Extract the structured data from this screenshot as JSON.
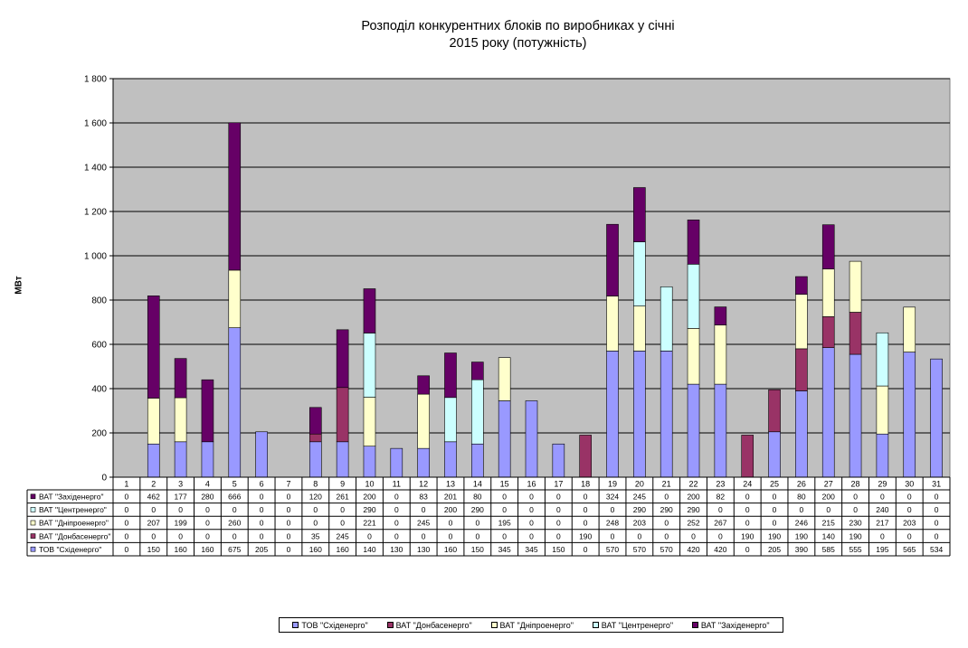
{
  "chart_data": {
    "type": "bar",
    "stacked": true,
    "title_lines": [
      "Розподіл конкурентних  блоків по виробниках у січні",
      "2015 року  (потужність)"
    ],
    "ylabel": "МВт",
    "ylim": [
      0,
      1800
    ],
    "yticks": [
      "0",
      "200",
      "400",
      "600",
      "800",
      "1 000",
      "1 200",
      "1 400",
      "1 600",
      "1 800"
    ],
    "grid": true,
    "plot_background": "#c0c0c0",
    "legend_position": "bottom",
    "categories": [
      "1",
      "2",
      "3",
      "4",
      "5",
      "6",
      "7",
      "8",
      "9",
      "10",
      "11",
      "12",
      "13",
      "14",
      "15",
      "16",
      "17",
      "18",
      "19",
      "20",
      "21",
      "22",
      "23",
      "24",
      "25",
      "26",
      "27",
      "28",
      "29",
      "30",
      "31"
    ],
    "series": [
      {
        "name": "ТОВ \"Східенерго\"",
        "table_label": "ТОВ \"Східенерго\"",
        "legend_label": "ТОВ \"Східенерго\"",
        "color": "#9999ff",
        "values": [
          0,
          150,
          160,
          160,
          675,
          205,
          0,
          160,
          160,
          140,
          130,
          130,
          160,
          150,
          345,
          345,
          150,
          0,
          570,
          570,
          570,
          420,
          420,
          0,
          205,
          390,
          585,
          555,
          195,
          565,
          534
        ]
      },
      {
        "name": "ВАТ \"Донбасенерго\"",
        "table_label": "ВАТ \"Донбасенерго\"",
        "legend_label": "ВАТ \"Донбасенерго\"",
        "color": "#993366",
        "values": [
          0,
          0,
          0,
          0,
          0,
          0,
          0,
          35,
          245,
          0,
          0,
          0,
          0,
          0,
          0,
          0,
          0,
          190,
          0,
          0,
          0,
          0,
          0,
          190,
          190,
          190,
          140,
          190,
          0,
          0,
          0
        ]
      },
      {
        "name": "ВАТ \"Дніпроенерго\"",
        "table_label": "ВАТ \"Дніпроенерго\"",
        "legend_label": "ВАТ \"Дніпроенерго\"",
        "color": "#ffffcc",
        "values": [
          0,
          207,
          199,
          0,
          260,
          0,
          0,
          0,
          0,
          221,
          0,
          245,
          0,
          0,
          195,
          0,
          0,
          0,
          248,
          203,
          0,
          252,
          267,
          0,
          0,
          246,
          215,
          230,
          217,
          203,
          0
        ]
      },
      {
        "name": "ВАТ \"Центренерго\"",
        "table_label": "ВАТ \"Центренерго\"",
        "legend_label": "ВАТ \"Центренерго\"",
        "color": "#ccffff",
        "values": [
          0,
          0,
          0,
          0,
          0,
          0,
          0,
          0,
          0,
          290,
          0,
          0,
          200,
          290,
          0,
          0,
          0,
          0,
          0,
          290,
          290,
          290,
          0,
          0,
          0,
          0,
          0,
          0,
          240,
          0,
          0
        ]
      },
      {
        "name": "ВАТ \"Західенерго\"",
        "table_label": "ВАТ \"Західенерго\"",
        "legend_label": "ВАТ \"Західенерго\"",
        "color": "#660066",
        "values": [
          0,
          462,
          177,
          280,
          666,
          0,
          0,
          120,
          261,
          200,
          0,
          83,
          201,
          80,
          0,
          0,
          0,
          0,
          324,
          245,
          0,
          200,
          82,
          0,
          0,
          80,
          200,
          0,
          0,
          0,
          0
        ]
      }
    ],
    "table_row_order": [
      4,
      3,
      2,
      1,
      0
    ]
  }
}
